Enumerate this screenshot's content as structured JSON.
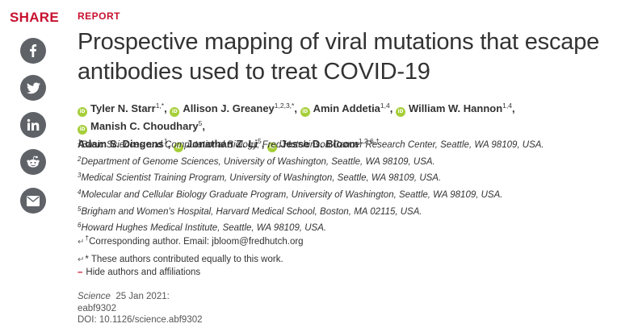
{
  "share": {
    "label": "SHARE",
    "buttons": [
      {
        "name": "facebook",
        "icon": "facebook-icon"
      },
      {
        "name": "twitter",
        "icon": "twitter-icon"
      },
      {
        "name": "linkedin",
        "icon": "linkedin-icon"
      },
      {
        "name": "reddit",
        "icon": "reddit-icon"
      },
      {
        "name": "email",
        "icon": "email-icon"
      }
    ],
    "button_color": "#5f6368"
  },
  "article": {
    "section": "REPORT",
    "title": "Prospective mapping of viral mutations that escape antibodies used to treat COVID-19",
    "authors": [
      {
        "name": "Tyler N. Starr",
        "sup": "1,*",
        "sep": ","
      },
      {
        "name": "Allison J. Greaney",
        "sup": "1,2,3,*",
        "sep": ","
      },
      {
        "name": "Amin Addetia",
        "sup": "1,4",
        "sep": ","
      },
      {
        "name": "William W. Hannon",
        "sup": "1,4",
        "sep": ","
      },
      {
        "name": "Manish C. Choudhary",
        "sup": "5",
        "sep": ","
      },
      {
        "name": "Adam S. Dingens",
        "sup": "1",
        "sep": ","
      },
      {
        "name": "Jonathan Z. Li",
        "sup": "5",
        "sep": ","
      },
      {
        "name": "Jesse D. Bloom",
        "sup": "1,2,6,†",
        "sep": ""
      }
    ],
    "affiliations": [
      {
        "num": "1",
        "text": "Basic Sciences and Computational Biology, Fred Hutchinson Cancer Research Center, Seattle, WA 98109, USA."
      },
      {
        "num": "2",
        "text": "Department of Genome Sciences, University of Washington, Seattle, WA 98109, USA."
      },
      {
        "num": "3",
        "text": "Medical Scientist Training Program, University of Washington, Seattle, WA 98109, USA."
      },
      {
        "num": "4",
        "text": "Molecular and Cellular Biology Graduate Program, University of Washington, Seattle, WA 98109, USA."
      },
      {
        "num": "5",
        "text": "Brigham and Women's Hospital, Harvard Medical School, Boston, MA 02115, USA."
      },
      {
        "num": "6",
        "text": "Howard Hughes Medical Institute, Seattle, WA 98109, USA."
      }
    ],
    "corresponding": {
      "arrow": "↵",
      "mark": "†",
      "prefix": "Corresponding author. Email: ",
      "email": "jbloom@fredhutch.org"
    },
    "contribution": {
      "arrow": "↵",
      "text": "* These authors contributed equally to this work."
    },
    "hide_toggle": {
      "symbol": "–",
      "label": "Hide authors and affiliations"
    },
    "publication": {
      "journal": "Science",
      "date": "25 Jan 2021:",
      "id": "eabf9302",
      "doi": "DOI: 10.1126/science.abf9302"
    }
  },
  "colors": {
    "accent": "#c8102e",
    "orcid": "#a6ce39",
    "text": "#333333"
  }
}
